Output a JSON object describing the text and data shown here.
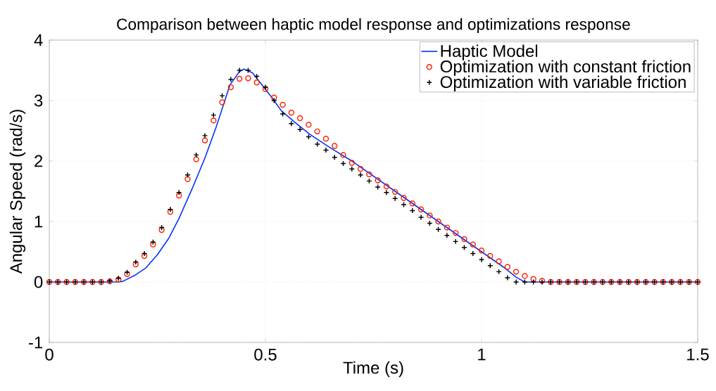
{
  "chart_data": {
    "type": "line",
    "title": "Comparison between haptic model response and optimizations response",
    "xlabel": "Time (s)",
    "ylabel": "Angular Speed (rad/s)",
    "xlim": [
      0,
      1.5
    ],
    "ylim": [
      -1,
      4
    ],
    "xticks": [
      0,
      0.5,
      1,
      1.5
    ],
    "yticks": [
      -1,
      0,
      1,
      2,
      3,
      4
    ],
    "grid": true,
    "legend": "top right",
    "series": [
      {
        "name": "Haptic Model",
        "color": "#0033ff",
        "marker": "none",
        "x": [
          0,
          0.16,
          0.17,
          0.2,
          0.223,
          0.25,
          0.277,
          0.3,
          0.331,
          0.36,
          0.386,
          0.418,
          0.44,
          0.451,
          0.47,
          0.494,
          0.515,
          0.537,
          0.57,
          0.603,
          0.65,
          0.7,
          0.8,
          0.9,
          1.0,
          1.05,
          1.08,
          1.1,
          1.5
        ],
        "values": [
          0,
          0,
          0.01,
          0.12,
          0.23,
          0.45,
          0.73,
          1.05,
          1.55,
          2.05,
          2.56,
          3.26,
          3.48,
          3.52,
          3.46,
          3.24,
          3.05,
          2.83,
          2.63,
          2.44,
          2.22,
          2.0,
          1.5,
          1.0,
          0.5,
          0.25,
          0.08,
          0,
          0
        ]
      },
      {
        "name": "Optimization with constant friction",
        "type": "scatter",
        "color": "#ff2200",
        "marker": "circle",
        "x": [
          0,
          0.02,
          0.04,
          0.06,
          0.08,
          0.1,
          0.12,
          0.14,
          0.16,
          0.18,
          0.2,
          0.22,
          0.24,
          0.26,
          0.28,
          0.3,
          0.32,
          0.34,
          0.36,
          0.38,
          0.4,
          0.42,
          0.44,
          0.46,
          0.48,
          0.5,
          0.52,
          0.54,
          0.56,
          0.58,
          0.6,
          0.62,
          0.64,
          0.66,
          0.68,
          0.7,
          0.72,
          0.74,
          0.76,
          0.78,
          0.8,
          0.82,
          0.84,
          0.86,
          0.88,
          0.9,
          0.92,
          0.94,
          0.96,
          0.98,
          1.0,
          1.02,
          1.04,
          1.06,
          1.08,
          1.1,
          1.12,
          1.14,
          1.16,
          1.18,
          1.2,
          1.22,
          1.24,
          1.26,
          1.28,
          1.3,
          1.32,
          1.34,
          1.36,
          1.38,
          1.4,
          1.42,
          1.44,
          1.46,
          1.48,
          1.5
        ],
        "values": [
          0,
          0,
          0,
          0,
          0,
          0,
          0,
          0.01,
          0.04,
          0.13,
          0.29,
          0.43,
          0.62,
          0.86,
          1.16,
          1.43,
          1.7,
          2.03,
          2.34,
          2.67,
          2.97,
          3.22,
          3.36,
          3.37,
          3.3,
          3.19,
          3.05,
          2.93,
          2.8,
          2.71,
          2.6,
          2.49,
          2.37,
          2.25,
          2.1,
          1.97,
          1.87,
          1.78,
          1.68,
          1.58,
          1.49,
          1.39,
          1.3,
          1.2,
          1.1,
          1.0,
          0.9,
          0.81,
          0.71,
          0.62,
          0.52,
          0.43,
          0.34,
          0.25,
          0.17,
          0.1,
          0.05,
          0.02,
          0,
          0,
          0,
          0,
          0,
          0,
          0,
          0,
          0,
          0,
          0,
          0,
          0,
          0,
          0,
          0,
          0,
          0
        ]
      },
      {
        "name": "Optimization with variable friction",
        "type": "scatter",
        "color": "#000000",
        "marker": "cross",
        "x": [
          0,
          0.02,
          0.04,
          0.06,
          0.08,
          0.1,
          0.12,
          0.14,
          0.16,
          0.18,
          0.2,
          0.22,
          0.24,
          0.26,
          0.28,
          0.3,
          0.32,
          0.34,
          0.36,
          0.38,
          0.4,
          0.42,
          0.44,
          0.46,
          0.48,
          0.5,
          0.52,
          0.54,
          0.56,
          0.58,
          0.6,
          0.62,
          0.64,
          0.66,
          0.68,
          0.7,
          0.72,
          0.74,
          0.76,
          0.78,
          0.8,
          0.82,
          0.84,
          0.86,
          0.88,
          0.9,
          0.92,
          0.94,
          0.96,
          0.98,
          1.0,
          1.02,
          1.04,
          1.06,
          1.08,
          1.1,
          1.12,
          1.14,
          1.16,
          1.18,
          1.2,
          1.22,
          1.24,
          1.26,
          1.28,
          1.3,
          1.32,
          1.34,
          1.36,
          1.38,
          1.4,
          1.42,
          1.44,
          1.46,
          1.48,
          1.5
        ],
        "values": [
          0,
          0,
          0,
          0,
          0,
          0,
          0,
          0.02,
          0.06,
          0.16,
          0.33,
          0.47,
          0.66,
          0.9,
          1.2,
          1.48,
          1.77,
          2.1,
          2.42,
          2.76,
          3.08,
          3.35,
          3.5,
          3.5,
          3.4,
          3.22,
          3.0,
          2.78,
          2.62,
          2.52,
          2.4,
          2.28,
          2.18,
          2.06,
          1.96,
          1.87,
          1.77,
          1.67,
          1.57,
          1.48,
          1.38,
          1.28,
          1.18,
          1.07,
          0.97,
          0.87,
          0.77,
          0.67,
          0.57,
          0.47,
          0.37,
          0.27,
          0.17,
          0.07,
          0,
          0,
          0,
          0,
          0,
          0,
          0,
          0,
          0,
          0,
          0,
          0,
          0,
          0,
          0,
          0,
          0,
          0,
          0,
          0,
          0,
          0
        ]
      }
    ]
  }
}
